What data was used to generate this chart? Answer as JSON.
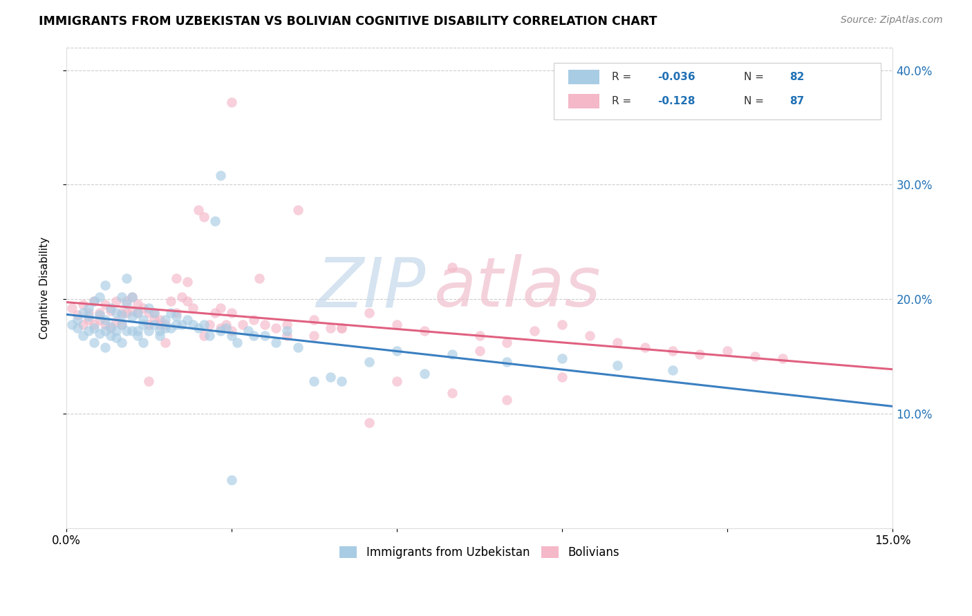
{
  "title": "IMMIGRANTS FROM UZBEKISTAN VS BOLIVIAN COGNITIVE DISABILITY CORRELATION CHART",
  "source": "Source: ZipAtlas.com",
  "ylabel": "Cognitive Disability",
  "xlim": [
    0.0,
    0.15
  ],
  "ylim": [
    0.0,
    0.42
  ],
  "x_tick_positions": [
    0.0,
    0.03,
    0.06,
    0.09,
    0.12,
    0.15
  ],
  "x_tick_labels": [
    "0.0%",
    "",
    "",
    "",
    "",
    "15.0%"
  ],
  "y_tick_positions": [
    0.1,
    0.2,
    0.3,
    0.4
  ],
  "y_tick_labels_right": [
    "10.0%",
    "20.0%",
    "30.0%",
    "40.0%"
  ],
  "legend_label1": "Immigrants from Uzbekistan",
  "legend_label2": "Bolivians",
  "R1": "-0.036",
  "N1": "82",
  "R2": "-0.128",
  "N2": "87",
  "color_blue": "#a8cce4",
  "color_pink": "#f4b8c8",
  "line_color_blue": "#3a7fc1",
  "line_color_pink": "#e06080",
  "right_axis_color": "#2171b5",
  "grid_color": "#cccccc",
  "title_fontsize": 12.5,
  "source_fontsize": 10,
  "axis_label_fontsize": 11,
  "tick_fontsize": 12,
  "legend_fontsize": 12,
  "marker_size": 110,
  "marker_alpha": 0.65,
  "blue_x": [
    0.001,
    0.002,
    0.002,
    0.003,
    0.003,
    0.004,
    0.004,
    0.004,
    0.005,
    0.005,
    0.005,
    0.006,
    0.006,
    0.006,
    0.007,
    0.007,
    0.007,
    0.007,
    0.008,
    0.008,
    0.008,
    0.009,
    0.009,
    0.009,
    0.01,
    0.01,
    0.01,
    0.01,
    0.011,
    0.011,
    0.011,
    0.012,
    0.012,
    0.012,
    0.013,
    0.013,
    0.013,
    0.014,
    0.014,
    0.014,
    0.015,
    0.015,
    0.016,
    0.016,
    0.017,
    0.017,
    0.018,
    0.018,
    0.019,
    0.019,
    0.02,
    0.02,
    0.021,
    0.022,
    0.023,
    0.024,
    0.025,
    0.026,
    0.027,
    0.028,
    0.029,
    0.03,
    0.031,
    0.033,
    0.034,
    0.036,
    0.038,
    0.04,
    0.042,
    0.045,
    0.048,
    0.05,
    0.055,
    0.06,
    0.065,
    0.07,
    0.08,
    0.09,
    0.1,
    0.11,
    0.028,
    0.03
  ],
  "blue_y": [
    0.178,
    0.182,
    0.175,
    0.188,
    0.168,
    0.192,
    0.172,
    0.185,
    0.198,
    0.175,
    0.162,
    0.202,
    0.186,
    0.17,
    0.158,
    0.212,
    0.172,
    0.182,
    0.168,
    0.192,
    0.176,
    0.188,
    0.166,
    0.172,
    0.202,
    0.178,
    0.186,
    0.162,
    0.218,
    0.196,
    0.172,
    0.202,
    0.172,
    0.185,
    0.188,
    0.172,
    0.168,
    0.182,
    0.162,
    0.178,
    0.172,
    0.192,
    0.178,
    0.188,
    0.172,
    0.168,
    0.182,
    0.175,
    0.188,
    0.175,
    0.178,
    0.185,
    0.178,
    0.182,
    0.178,
    0.175,
    0.178,
    0.168,
    0.268,
    0.172,
    0.175,
    0.168,
    0.162,
    0.172,
    0.168,
    0.168,
    0.162,
    0.172,
    0.158,
    0.128,
    0.132,
    0.128,
    0.145,
    0.155,
    0.135,
    0.152,
    0.145,
    0.148,
    0.142,
    0.138,
    0.308,
    0.042
  ],
  "pink_x": [
    0.001,
    0.002,
    0.003,
    0.003,
    0.004,
    0.004,
    0.005,
    0.005,
    0.006,
    0.006,
    0.007,
    0.007,
    0.008,
    0.008,
    0.009,
    0.009,
    0.01,
    0.01,
    0.011,
    0.011,
    0.012,
    0.012,
    0.013,
    0.013,
    0.014,
    0.015,
    0.015,
    0.016,
    0.016,
    0.017,
    0.017,
    0.018,
    0.019,
    0.02,
    0.021,
    0.022,
    0.023,
    0.024,
    0.025,
    0.026,
    0.027,
    0.028,
    0.029,
    0.03,
    0.032,
    0.034,
    0.036,
    0.038,
    0.04,
    0.042,
    0.045,
    0.048,
    0.05,
    0.055,
    0.06,
    0.065,
    0.07,
    0.075,
    0.08,
    0.085,
    0.09,
    0.095,
    0.1,
    0.105,
    0.11,
    0.115,
    0.12,
    0.125,
    0.13,
    0.02,
    0.025,
    0.03,
    0.015,
    0.018,
    0.022,
    0.028,
    0.035,
    0.04,
    0.045,
    0.05,
    0.06,
    0.07,
    0.08,
    0.09,
    0.03,
    0.055,
    0.075
  ],
  "pink_y": [
    0.192,
    0.186,
    0.178,
    0.195,
    0.182,
    0.188,
    0.178,
    0.198,
    0.182,
    0.188,
    0.178,
    0.195,
    0.19,
    0.175,
    0.198,
    0.18,
    0.188,
    0.178,
    0.198,
    0.188,
    0.202,
    0.19,
    0.196,
    0.188,
    0.192,
    0.178,
    0.188,
    0.188,
    0.182,
    0.182,
    0.178,
    0.178,
    0.198,
    0.188,
    0.202,
    0.198,
    0.192,
    0.278,
    0.272,
    0.178,
    0.188,
    0.192,
    0.178,
    0.188,
    0.178,
    0.182,
    0.178,
    0.175,
    0.168,
    0.278,
    0.182,
    0.175,
    0.175,
    0.188,
    0.178,
    0.172,
    0.228,
    0.168,
    0.162,
    0.172,
    0.178,
    0.168,
    0.162,
    0.158,
    0.155,
    0.152,
    0.155,
    0.15,
    0.148,
    0.218,
    0.168,
    0.172,
    0.128,
    0.162,
    0.215,
    0.175,
    0.218,
    0.178,
    0.168,
    0.175,
    0.128,
    0.118,
    0.112,
    0.132,
    0.372,
    0.092,
    0.155
  ]
}
